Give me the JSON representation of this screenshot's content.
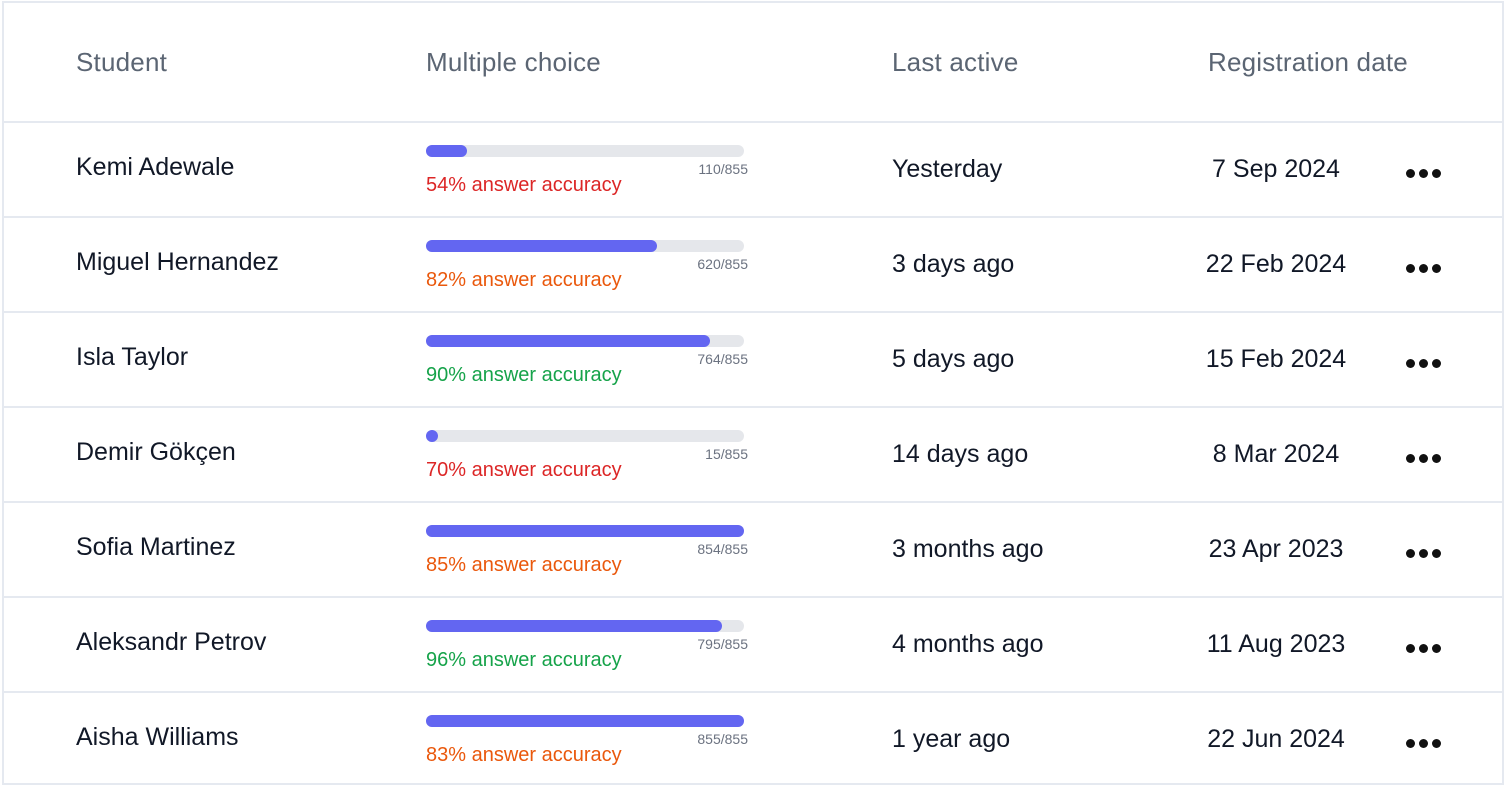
{
  "colors": {
    "progress_fill": "#6366f1",
    "progress_track": "#e5e7eb",
    "accuracy_red": "#dc2626",
    "accuracy_orange": "#ea580c",
    "accuracy_green": "#16a34a"
  },
  "header": {
    "student": "Student",
    "multiple_choice": "Multiple choice",
    "last_active": "Last active",
    "registration_date": "Registration date"
  },
  "rows": [
    {
      "name": "Kemi Adewale",
      "progress_done": 110,
      "progress_total": 855,
      "count": "110/855",
      "accuracy": "54% answer accuracy",
      "accuracy_color": "#dc2626",
      "last_active": "Yesterday",
      "registered": "7 Sep 2024",
      "more_icon": "more-horizontal-icon"
    },
    {
      "name": "Miguel Hernandez",
      "progress_done": 620,
      "progress_total": 855,
      "count": "620/855",
      "accuracy": "82% answer accuracy",
      "accuracy_color": "#ea580c",
      "last_active": "3 days ago",
      "registered": "22 Feb 2024",
      "more_icon": "more-horizontal-icon"
    },
    {
      "name": "Isla Taylor",
      "progress_done": 764,
      "progress_total": 855,
      "count": "764/855",
      "accuracy": "90% answer accuracy",
      "accuracy_color": "#16a34a",
      "last_active": "5 days ago",
      "registered": "15 Feb 2024",
      "more_icon": "more-horizontal-icon"
    },
    {
      "name": "Demir Gökçen",
      "progress_done": 15,
      "progress_total": 855,
      "count": "15/855",
      "accuracy": "70% answer accuracy",
      "accuracy_color": "#dc2626",
      "last_active": "14 days ago",
      "registered": "8 Mar 2024",
      "more_icon": "more-horizontal-icon"
    },
    {
      "name": "Sofia Martinez",
      "progress_done": 854,
      "progress_total": 855,
      "count": "854/855",
      "accuracy": "85% answer accuracy",
      "accuracy_color": "#ea580c",
      "last_active": "3 months ago",
      "registered": "23 Apr 2023",
      "more_icon": "more-horizontal-icon"
    },
    {
      "name": "Aleksandr Petrov",
      "progress_done": 795,
      "progress_total": 855,
      "count": "795/855",
      "accuracy": "96% answer accuracy",
      "accuracy_color": "#16a34a",
      "last_active": "4 months ago",
      "registered": "11 Aug 2023",
      "more_icon": "more-horizontal-icon"
    },
    {
      "name": "Aisha Williams",
      "progress_done": 855,
      "progress_total": 855,
      "count": "855/855",
      "accuracy": "83% answer accuracy",
      "accuracy_color": "#ea580c",
      "last_active": "1 year ago",
      "registered": "22 Jun 2024",
      "more_icon": "more-horizontal-icon"
    }
  ]
}
